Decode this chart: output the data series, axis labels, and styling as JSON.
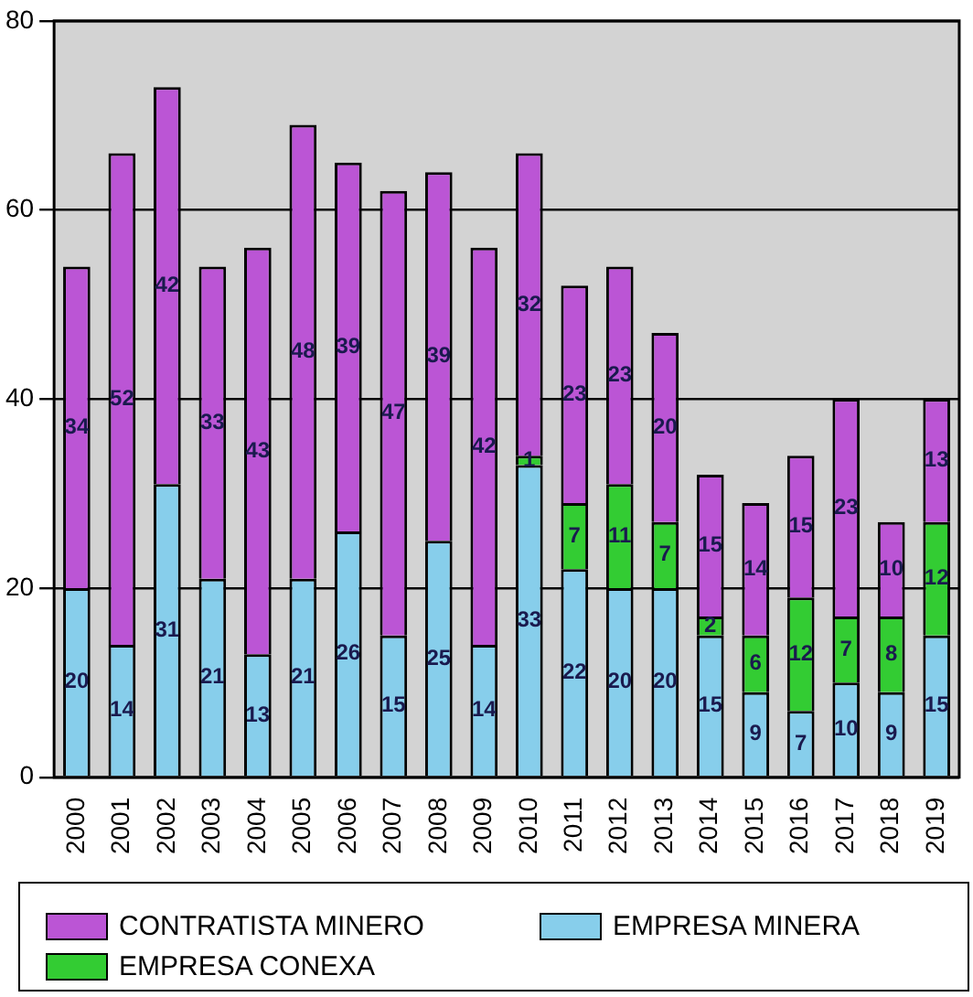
{
  "chart_data": {
    "type": "bar",
    "stacked": true,
    "categories": [
      "2000",
      "2001",
      "2002",
      "2003",
      "2004",
      "2005",
      "2006",
      "2007",
      "2008",
      "2009",
      "2010",
      "2011",
      "2012",
      "2013",
      "2014",
      "2015",
      "2016",
      "2017",
      "2018",
      "2019"
    ],
    "series": [
      {
        "name": "EMPRESA MINERA",
        "color": "#87ceeb",
        "values": [
          20,
          14,
          31,
          21,
          13,
          21,
          26,
          15,
          25,
          14,
          33,
          22,
          20,
          20,
          15,
          9,
          7,
          10,
          9,
          15
        ]
      },
      {
        "name": "EMPRESA CONEXA",
        "color": "#33cc33",
        "values": [
          null,
          null,
          null,
          null,
          null,
          null,
          null,
          null,
          null,
          null,
          1,
          7,
          11,
          7,
          2,
          6,
          12,
          7,
          8,
          12
        ]
      },
      {
        "name": "CONTRATISTA MINERO",
        "color": "#bb55d5",
        "values": [
          34,
          52,
          42,
          33,
          43,
          48,
          39,
          47,
          39,
          42,
          32,
          23,
          23,
          20,
          15,
          14,
          15,
          23,
          10,
          13
        ]
      }
    ],
    "ylim": [
      0,
      80
    ],
    "yticks": [
      0,
      20,
      40,
      60,
      80
    ],
    "grid": "y",
    "data_labels": true,
    "legend": "bottom"
  }
}
